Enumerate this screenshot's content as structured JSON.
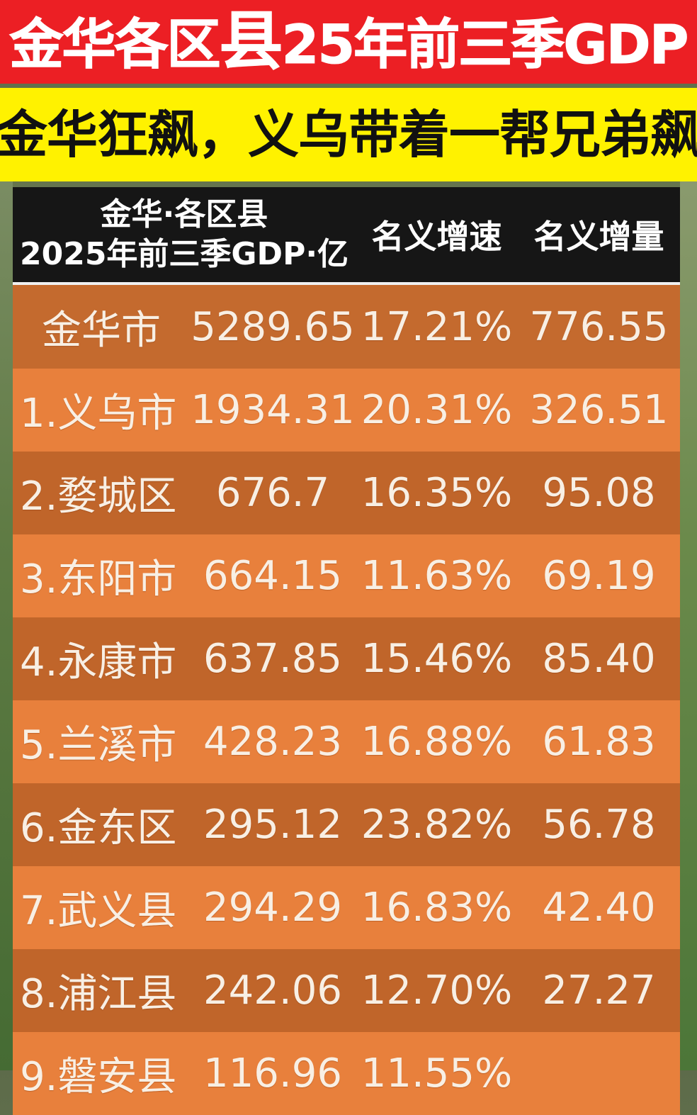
{
  "title": {
    "prefix": "金华各区",
    "emphasis": "县",
    "suffix": "25年前三季GDP"
  },
  "subtitle": "金华狂飙，义乌带着一帮兄弟飙",
  "table": {
    "headers": {
      "col0_line1": "金华·各区县",
      "col0_line2": "2025年前三季GDP·亿",
      "col1": "名义增速",
      "col2": "名义增量"
    },
    "total": {
      "name": "金华市",
      "gdp": "5289.65",
      "growth": "17.21%",
      "increase": "776.55"
    },
    "rows": [
      {
        "name": "1.义乌市",
        "gdp": "1934.31",
        "growth": "20.31%",
        "increase": "326.51"
      },
      {
        "name": "2.婺城区",
        "gdp": "676.7",
        "growth": "16.35%",
        "increase": "95.08"
      },
      {
        "name": "3.东阳市",
        "gdp": "664.15",
        "growth": "11.63%",
        "increase": "69.19"
      },
      {
        "name": "4.永康市",
        "gdp": "637.85",
        "growth": "15.46%",
        "increase": "85.40"
      },
      {
        "name": "5.兰溪市",
        "gdp": "428.23",
        "growth": "16.88%",
        "increase": "61.83"
      },
      {
        "name": "6.金东区",
        "gdp": "295.12",
        "growth": "23.82%",
        "increase": "56.78"
      },
      {
        "name": "7.武义县",
        "gdp": "294.29",
        "growth": "16.83%",
        "increase": "42.40"
      },
      {
        "name": "8.浦江县",
        "gdp": "242.06",
        "growth": "12.70%",
        "increase": "27.27"
      },
      {
        "name": "9.磐安县",
        "gdp": "116.96",
        "growth": "11.55%",
        "increase": ""
      }
    ]
  },
  "colors": {
    "title_bg": "#ec1f24",
    "subtitle_bg": "#fff200",
    "header_bg": "#161616",
    "row_dark": "#c0652a",
    "row_light": "#e8803c"
  }
}
